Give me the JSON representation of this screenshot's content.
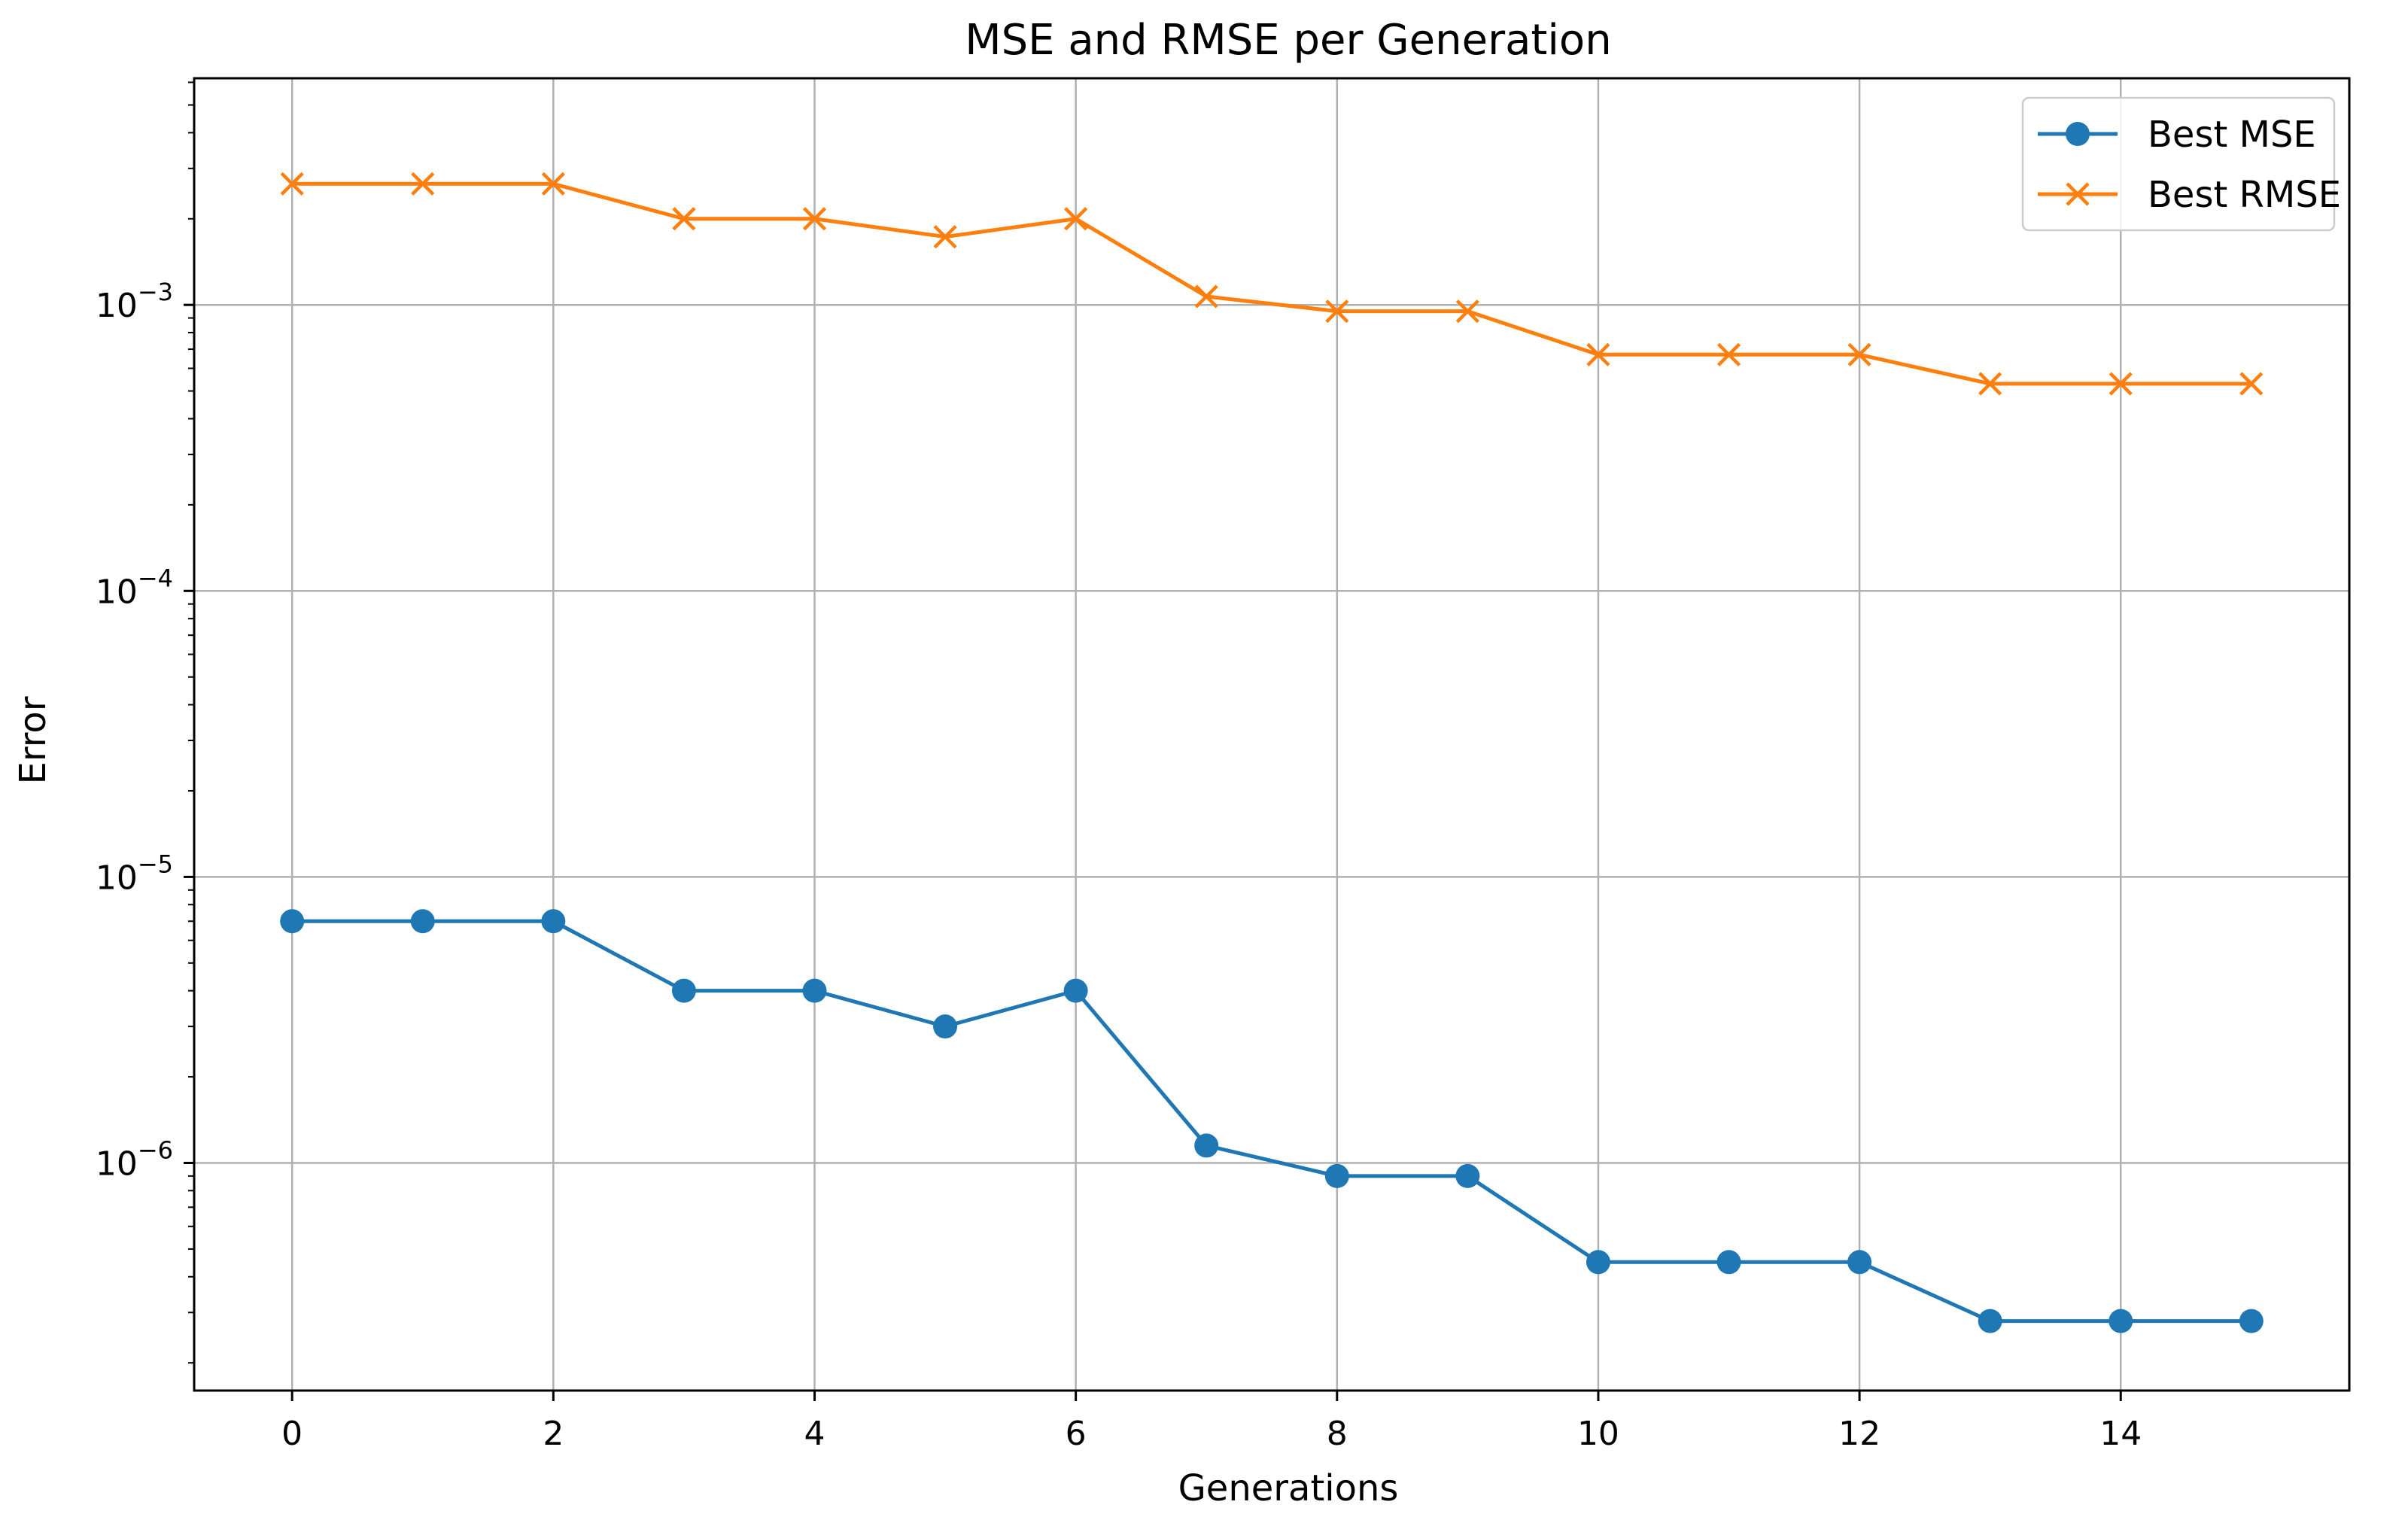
{
  "chart_data": {
    "type": "line",
    "title": "MSE and RMSE per Generation",
    "xlabel": "Generations",
    "ylabel": "Error",
    "yscale": "log",
    "xlim": [
      -0.75,
      15.75
    ],
    "ylim": [
      1.6e-07,
      0.0062
    ],
    "grid": true,
    "legend_position": "top-right",
    "x": [
      0,
      1,
      2,
      3,
      4,
      5,
      6,
      7,
      8,
      9,
      10,
      11,
      12,
      13,
      14,
      15
    ],
    "x_ticks": [
      0,
      2,
      4,
      6,
      8,
      10,
      12,
      14
    ],
    "x_tick_labels": [
      "0",
      "2",
      "4",
      "6",
      "8",
      "10",
      "12",
      "14"
    ],
    "y_ticks": [
      {
        "value": 0.001,
        "base": "10",
        "exp": "−3"
      },
      {
        "value": 0.0001,
        "base": "10",
        "exp": "−4"
      },
      {
        "value": 1e-05,
        "base": "10",
        "exp": "−5"
      },
      {
        "value": 1e-06,
        "base": "10",
        "exp": "−6"
      }
    ],
    "series": [
      {
        "name": "Best MSE",
        "color": "#1f77b4",
        "marker": "circle",
        "values": [
          7e-06,
          7e-06,
          7e-06,
          4e-06,
          4e-06,
          3e-06,
          4e-06,
          1.15e-06,
          9e-07,
          9e-07,
          4.5e-07,
          4.5e-07,
          4.5e-07,
          2.8e-07,
          2.8e-07,
          2.8e-07
        ]
      },
      {
        "name": "Best RMSE",
        "color": "#ff7f0e",
        "marker": "x",
        "values": [
          0.00265,
          0.00265,
          0.00265,
          0.002,
          0.002,
          0.00173,
          0.002,
          0.00107,
          0.00095,
          0.00095,
          0.00067,
          0.00067,
          0.00067,
          0.00053,
          0.00053,
          0.00053
        ]
      }
    ]
  }
}
